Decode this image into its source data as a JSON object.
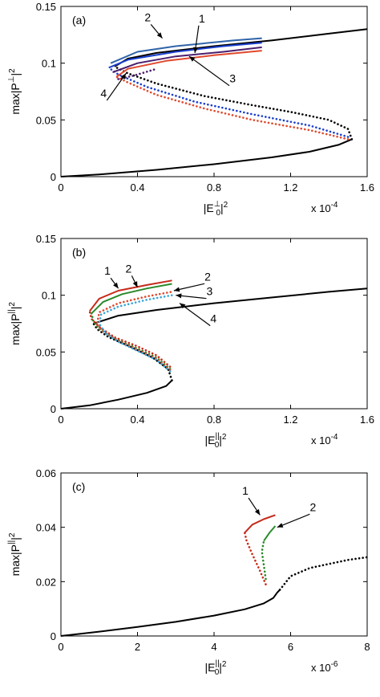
{
  "chart_data": [
    {
      "type": "line",
      "panel_label": "(a)",
      "xlabel_base": "|E",
      "xlabel_sub": "0",
      "xlabel_sup": "⊥",
      "xlabel_power": "2",
      "ylabel": "max|P",
      "ylabel_sup": "⊥",
      "ylabel_power": "2",
      "x_multiplier": "x 10",
      "x_multiplier_exp": "-4",
      "xlim": [
        0,
        1.6
      ],
      "ylim": [
        0,
        0.15
      ],
      "x_ticks": [
        "0",
        "0.4",
        "0.8",
        "1.2",
        "1.6"
      ],
      "x_tick_values": [
        0,
        0.4,
        0.8,
        1.2,
        1.6
      ],
      "y_ticks": [
        "0",
        "0.05",
        "0.1",
        "0.15"
      ],
      "y_tick_values": [
        0,
        0.05,
        0.1,
        0.15
      ],
      "grid": false,
      "series": [
        {
          "color": "#000000",
          "style": "solid",
          "x": [
            0,
            0.2,
            0.5,
            0.8,
            1.1,
            1.3,
            1.45,
            1.52
          ],
          "y": [
            0,
            0.002,
            0.006,
            0.011,
            0.017,
            0.022,
            0.028,
            0.033
          ]
        },
        {
          "color": "#000000",
          "style": "dotted",
          "x": [
            1.52,
            1.5,
            1.4,
            1.2,
            1.0,
            0.75,
            0.5,
            0.35,
            0.28
          ],
          "y": [
            0.033,
            0.042,
            0.05,
            0.057,
            0.063,
            0.071,
            0.082,
            0.091,
            0.097
          ]
        },
        {
          "color": "#000000",
          "style": "solid",
          "x": [
            0.28,
            0.35,
            0.5,
            0.8,
            1.1,
            1.4,
            1.6
          ],
          "y": [
            0.097,
            0.104,
            0.109,
            0.115,
            0.12,
            0.126,
            0.13
          ]
        },
        {
          "color": "#1a3fcc",
          "style": "dotted",
          "x": [
            1.5,
            1.3,
            1.0,
            0.7,
            0.45,
            0.3,
            0.25
          ],
          "y": [
            0.035,
            0.045,
            0.055,
            0.066,
            0.079,
            0.09,
            0.096
          ]
        },
        {
          "color": "#1a3fcc",
          "style": "solid",
          "x": [
            0.25,
            0.35,
            0.6,
            0.85,
            1.05
          ],
          "y": [
            0.096,
            0.103,
            0.11,
            0.115,
            0.118
          ]
        },
        {
          "color": "#2f64a8",
          "style": "solid",
          "x": [
            0.26,
            0.4,
            0.6,
            0.9,
            1.05
          ],
          "y": [
            0.1,
            0.11,
            0.115,
            0.12,
            0.122
          ]
        },
        {
          "color": "#e0492c",
          "style": "dotted",
          "x": [
            1.5,
            1.3,
            1.0,
            0.75,
            0.5,
            0.35,
            0.29
          ],
          "y": [
            0.033,
            0.041,
            0.05,
            0.06,
            0.072,
            0.083,
            0.088
          ]
        },
        {
          "color": "#e0492c",
          "style": "solid",
          "x": [
            0.29,
            0.35,
            0.55,
            0.8,
            1.05
          ],
          "y": [
            0.088,
            0.095,
            0.102,
            0.107,
            0.111
          ]
        },
        {
          "color": "#4b1e6e",
          "style": "dotted",
          "x": [
            0.3,
            0.38,
            0.5
          ],
          "y": [
            0.086,
            0.089,
            0.095
          ]
        },
        {
          "color": "#4b1e6e",
          "style": "solid",
          "x": [
            0.27,
            0.4,
            0.6,
            0.85,
            1.05
          ],
          "y": [
            0.092,
            0.1,
            0.106,
            0.11,
            0.114
          ]
        }
      ],
      "annotations": [
        {
          "text": "2",
          "x": 0.53,
          "y": 0.122,
          "tx": 0.47,
          "ty": 0.137
        },
        {
          "text": "1",
          "x": 0.7,
          "y": 0.109,
          "tx": 0.72,
          "ty": 0.136
        },
        {
          "text": "3",
          "x": 0.67,
          "y": 0.106,
          "tx": 0.88,
          "ty": 0.083
        },
        {
          "text": "4",
          "x": 0.34,
          "y": 0.091,
          "tx": 0.24,
          "ty": 0.07
        }
      ]
    },
    {
      "type": "line",
      "panel_label": "(b)",
      "xlabel_base": "|E",
      "xlabel_sub": "0",
      "xlabel_sup": "||",
      "xlabel_power": "2",
      "ylabel": "max|P",
      "ylabel_sup": "||",
      "ylabel_power": "2",
      "x_multiplier": "x 10",
      "x_multiplier_exp": "-4",
      "xlim": [
        0,
        1.6
      ],
      "ylim": [
        0,
        0.15
      ],
      "x_ticks": [
        "0",
        "0.4",
        "0.8",
        "1.2",
        "1.6"
      ],
      "x_tick_values": [
        0,
        0.4,
        0.8,
        1.2,
        1.6
      ],
      "y_ticks": [
        "0",
        "0.05",
        "0.1",
        "0.15"
      ],
      "y_tick_values": [
        0,
        0.05,
        0.1,
        0.15
      ],
      "grid": false,
      "series": [
        {
          "color": "#000000",
          "style": "solid",
          "x": [
            0,
            0.15,
            0.3,
            0.45,
            0.55,
            0.58
          ],
          "y": [
            0,
            0.003,
            0.008,
            0.014,
            0.02,
            0.025
          ]
        },
        {
          "color": "#000000",
          "style": "dotted",
          "x": [
            0.58,
            0.56,
            0.48,
            0.36,
            0.25,
            0.19,
            0.17
          ],
          "y": [
            0.025,
            0.035,
            0.045,
            0.055,
            0.063,
            0.07,
            0.075
          ]
        },
        {
          "color": "#000000",
          "style": "solid",
          "x": [
            0.17,
            0.3,
            0.5,
            0.8,
            1.1,
            1.4,
            1.6
          ],
          "y": [
            0.075,
            0.082,
            0.087,
            0.093,
            0.098,
            0.103,
            0.106
          ]
        },
        {
          "color": "#c62a1a",
          "style": "dotted",
          "x": [
            0.57,
            0.5,
            0.4,
            0.28,
            0.2,
            0.16,
            0.15
          ],
          "y": [
            0.037,
            0.047,
            0.055,
            0.063,
            0.072,
            0.079,
            0.086
          ]
        },
        {
          "color": "#c62a1a",
          "style": "solid",
          "x": [
            0.15,
            0.2,
            0.3,
            0.45,
            0.58
          ],
          "y": [
            0.086,
            0.097,
            0.104,
            0.109,
            0.113
          ]
        },
        {
          "color": "#2a8a2a",
          "style": "dotted",
          "x": [
            0.57,
            0.5,
            0.4,
            0.28,
            0.2,
            0.17,
            0.16
          ],
          "y": [
            0.035,
            0.045,
            0.053,
            0.062,
            0.07,
            0.077,
            0.084
          ]
        },
        {
          "color": "#2a8a2a",
          "style": "solid",
          "x": [
            0.16,
            0.22,
            0.32,
            0.45,
            0.58
          ],
          "y": [
            0.084,
            0.094,
            0.101,
            0.106,
            0.11
          ]
        },
        {
          "color": "#e0492c",
          "style": "dotted",
          "x": [
            0.57,
            0.5,
            0.4,
            0.3,
            0.22,
            0.19,
            0.2,
            0.3,
            0.45,
            0.58
          ],
          "y": [
            0.034,
            0.044,
            0.052,
            0.06,
            0.068,
            0.076,
            0.085,
            0.093,
            0.099,
            0.103
          ]
        },
        {
          "color": "#3aa6d9",
          "style": "dotted",
          "x": [
            0.57,
            0.5,
            0.4,
            0.3,
            0.23,
            0.2,
            0.21,
            0.3,
            0.45,
            0.58
          ],
          "y": [
            0.033,
            0.043,
            0.051,
            0.059,
            0.067,
            0.075,
            0.083,
            0.09,
            0.096,
            0.1
          ]
        }
      ],
      "annotations": [
        {
          "text": "1",
          "x": 0.3,
          "y": 0.106,
          "tx": 0.26,
          "ty": 0.118
        },
        {
          "text": "2",
          "x": 0.4,
          "y": 0.107,
          "tx": 0.37,
          "ty": 0.12
        },
        {
          "text": "2",
          "x": 0.59,
          "y": 0.104,
          "tx": 0.75,
          "ty": 0.113
        },
        {
          "text": "3",
          "x": 0.6,
          "y": 0.1,
          "tx": 0.76,
          "ty": 0.1
        },
        {
          "text": "4",
          "x": 0.62,
          "y": 0.093,
          "tx": 0.78,
          "ty": 0.076
        }
      ]
    },
    {
      "type": "line",
      "panel_label": "(c)",
      "xlabel_base": "|E",
      "xlabel_sub": "0",
      "xlabel_sup": "||",
      "xlabel_power": "2",
      "ylabel": "max|P",
      "ylabel_sup": "||",
      "ylabel_power": "2",
      "x_multiplier": "x 10",
      "x_multiplier_exp": "-6",
      "xlim": [
        0,
        8
      ],
      "ylim": [
        0,
        0.06
      ],
      "x_ticks": [
        "0",
        "2",
        "4",
        "6",
        "8"
      ],
      "x_tick_values": [
        0,
        2,
        4,
        6,
        8
      ],
      "y_ticks": [
        "0",
        "0.02",
        "0.04",
        "0.06"
      ],
      "y_tick_values": [
        0,
        0.02,
        0.04,
        0.06
      ],
      "grid": false,
      "series": [
        {
          "color": "#000000",
          "style": "solid",
          "x": [
            0,
            1,
            2,
            3,
            4,
            4.8,
            5.3,
            5.55,
            5.65,
            5.72
          ],
          "y": [
            0,
            0.0016,
            0.0033,
            0.0052,
            0.0075,
            0.0098,
            0.012,
            0.014,
            0.016,
            0.017
          ]
        },
        {
          "color": "#000000",
          "style": "dotted",
          "x": [
            5.72,
            6.0,
            6.5,
            7.0,
            7.5,
            8.0
          ],
          "y": [
            0.017,
            0.022,
            0.025,
            0.0265,
            0.028,
            0.029
          ]
        },
        {
          "color": "#c62a1a",
          "style": "dotted",
          "x": [
            5.35,
            5.2,
            5.0,
            4.85,
            4.8
          ],
          "y": [
            0.019,
            0.024,
            0.03,
            0.035,
            0.038
          ]
        },
        {
          "color": "#c62a1a",
          "style": "solid",
          "x": [
            4.8,
            5.0,
            5.3,
            5.6
          ],
          "y": [
            0.038,
            0.041,
            0.043,
            0.0445
          ]
        },
        {
          "color": "#2a8a2a",
          "style": "dotted",
          "x": [
            5.35,
            5.3,
            5.25,
            5.3
          ],
          "y": [
            0.021,
            0.026,
            0.031,
            0.035
          ]
        },
        {
          "color": "#2a8a2a",
          "style": "solid",
          "x": [
            5.3,
            5.45,
            5.6
          ],
          "y": [
            0.035,
            0.038,
            0.0405
          ]
        }
      ],
      "annotations": [
        {
          "text": "1",
          "x": 5.2,
          "y": 0.0445,
          "tx": 4.9,
          "ty": 0.052
        },
        {
          "text": "2",
          "x": 5.65,
          "y": 0.04,
          "tx": 6.5,
          "ty": 0.046
        }
      ]
    }
  ]
}
